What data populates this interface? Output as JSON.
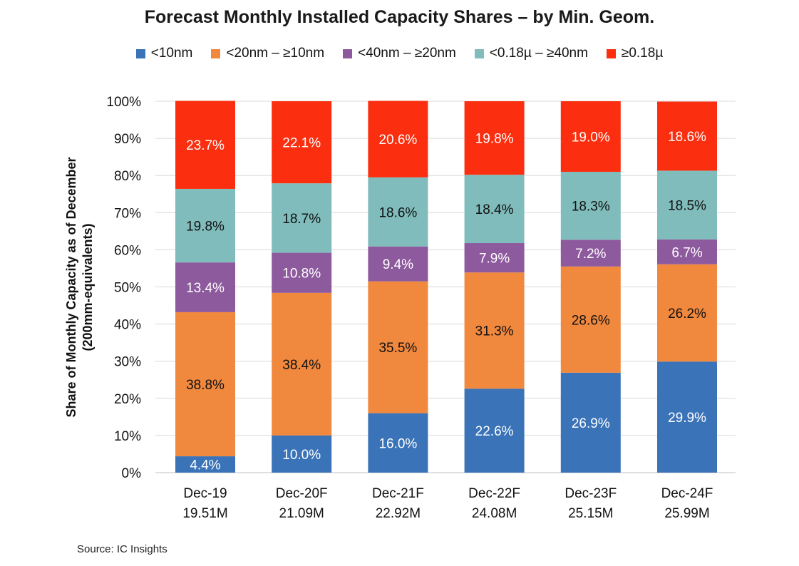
{
  "title": "Forecast Monthly Installed Capacity Shares – by Min. Geom.",
  "source": "Source:  IC Insights",
  "colors": {
    "<10nm": "#3a73b8",
    "<20nm – ≥10nm": "#f0883e",
    "<40nm – ≥20nm": "#8e5a9e",
    "<0.18µ – ≥40nm": "#7fbcbb",
    "≥0.18µ": "#fb2f0f"
  },
  "chart_data": {
    "type": "bar",
    "stacked": true,
    "title": "Forecast Monthly Installed Capacity Shares – by Min. Geom.",
    "ylabel": "Share of Monthly Capacity as of December (200mm-equivalents)",
    "ylabel_lines": [
      "Share of Monthly Capacity as of December",
      "(200mm-equivalents)"
    ],
    "xlabel": "",
    "ylim": [
      0,
      100
    ],
    "yticks": [
      "0%",
      "10%",
      "20%",
      "30%",
      "40%",
      "50%",
      "60%",
      "70%",
      "80%",
      "90%",
      "100%"
    ],
    "grid": true,
    "legend_position": "top",
    "categories": [
      "Dec-19",
      "Dec-20F",
      "Dec-21F",
      "Dec-22F",
      "Dec-23F",
      "Dec-24F"
    ],
    "category_totals": [
      "19.51M",
      "21.09M",
      "22.92M",
      "24.08M",
      "25.15M",
      "25.99M"
    ],
    "series": [
      {
        "name": "<10nm",
        "values": [
          4.4,
          10.0,
          16.0,
          22.6,
          26.9,
          29.9
        ]
      },
      {
        "name": "<20nm – ≥10nm",
        "values": [
          38.8,
          38.4,
          35.5,
          31.3,
          28.6,
          26.2
        ]
      },
      {
        "name": "<40nm – ≥20nm",
        "values": [
          13.4,
          10.8,
          9.4,
          7.9,
          7.2,
          6.7
        ]
      },
      {
        "name": "<0.18µ – ≥40nm",
        "values": [
          19.8,
          18.7,
          18.6,
          18.4,
          18.3,
          18.5
        ]
      },
      {
        "name": "≥0.18µ",
        "values": [
          23.7,
          22.1,
          20.6,
          19.8,
          19.0,
          18.6
        ]
      }
    ],
    "data_labels": [
      [
        "4.4%",
        "10.0%",
        "16.0%",
        "22.6%",
        "26.9%",
        "29.9%"
      ],
      [
        "38.8%",
        "38.4%",
        "35.5%",
        "31.3%",
        "28.6%",
        "26.2%"
      ],
      [
        "13.4%",
        "10.8%",
        "9.4%",
        "7.9%",
        "7.2%",
        "6.7%"
      ],
      [
        "19.8%",
        "18.7%",
        "18.6%",
        "18.4%",
        "18.3%",
        "18.5%"
      ],
      [
        "23.7%",
        "22.1%",
        "20.6%",
        "19.8%",
        "19.0%",
        "18.6%"
      ]
    ]
  }
}
